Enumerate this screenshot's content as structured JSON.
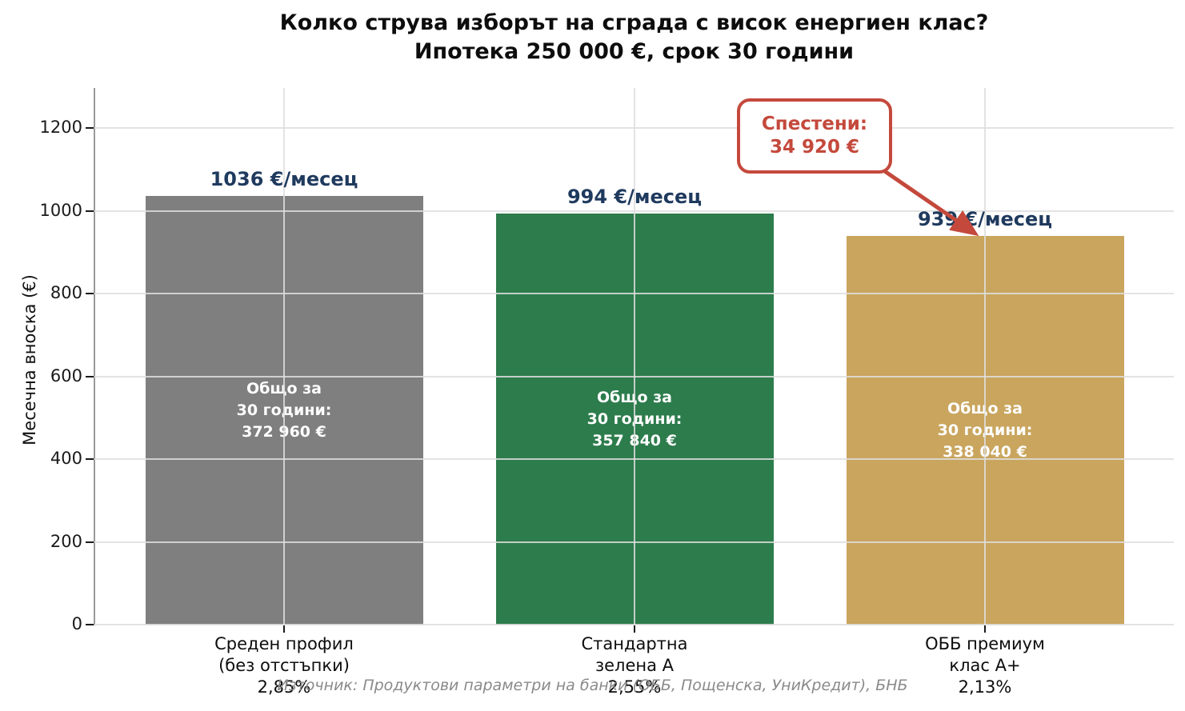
{
  "title": {
    "line1": "Колко струва изборът на сграда с висок енергиен клас?",
    "line2": "Ипотека 250 000 €, срок 30 години"
  },
  "ylabel": "Месечна вноска (€)",
  "source": "Източник: Продуктови параметри на банки (ОББ, Пощенска, УниКредит), БНБ",
  "annotation": {
    "line1": "Спестени:",
    "line2": "34 920 €"
  },
  "colors": {
    "navy_label": "#1f3a5e",
    "annotation_red": "#c4493c",
    "grid": "#e3e3e3",
    "axis_spine": "#9a9a9a",
    "source_gray": "#8a8a8a",
    "tick_black": "#1a1a1a"
  },
  "chart_data": {
    "type": "bar",
    "title": "Колко струва изборът на сграда с висок енергиен клас? Ипотека 250 000 €, срок 30 години",
    "xlabel": "",
    "ylabel": "Месечна вноска (€)",
    "ylim": [
      0,
      1297
    ],
    "yticks": [
      0,
      200,
      400,
      600,
      800,
      1000,
      1200
    ],
    "grid": true,
    "legend": false,
    "categories": [
      "Среден профил (без отстъпки) 2,85%",
      "Стандартна зелена А 2,55%",
      "ОББ премиум клас А+ 2,13%"
    ],
    "values": [
      1036,
      994,
      939
    ],
    "bars": [
      {
        "category_lines": [
          "Среден профил",
          "(без отстъпки)",
          "2,85%"
        ],
        "rate": "2,85%",
        "value": 1036,
        "value_label": "1036 €/месец",
        "total_lines": [
          "Общо за",
          "30 години:",
          "372 960 €"
        ],
        "total_value": 372960,
        "color": "#7f7f7f"
      },
      {
        "category_lines": [
          "Стандартна",
          "зелена А",
          "2,55%"
        ],
        "rate": "2,55%",
        "value": 994,
        "value_label": "994 €/месец",
        "total_lines": [
          "Общо за",
          "30 години:",
          "357 840 €"
        ],
        "total_value": 357840,
        "color": "#2d7c4c"
      },
      {
        "category_lines": [
          "ОББ премиум",
          "клас А+",
          "2,13%"
        ],
        "rate": "2,13%",
        "value": 939,
        "value_label": "939 €/месец",
        "total_lines": [
          "Общо за",
          "30 години:",
          "338 040 €"
        ],
        "total_value": 338040,
        "color": "#c9a55e"
      }
    ],
    "annotation": {
      "text": "Спестени: 34 920 €",
      "points_to": "ОББ премиум клас А+"
    }
  }
}
